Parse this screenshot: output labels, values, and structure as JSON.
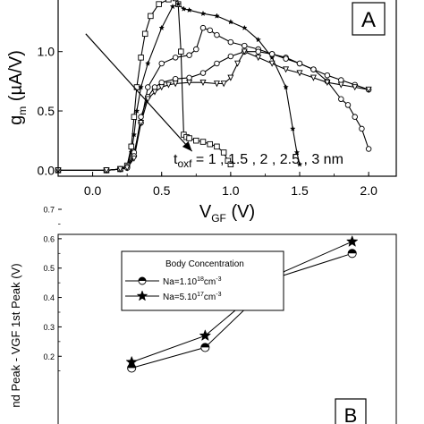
{
  "chart_data": [
    {
      "type": "line",
      "panel_label": "A",
      "xlabel": {
        "main": "V",
        "sub": "GF",
        "unit": " (V)"
      },
      "ylabel": {
        "main": "g",
        "sub": "m",
        "unit": " (µA/V)"
      },
      "xlim": [
        -0.25,
        2.2
      ],
      "ylim": [
        -0.05,
        1.45
      ],
      "xticks": [
        "0.0",
        "0.5",
        "1.0",
        "1.5",
        "2.0"
      ],
      "xtick_values": [
        0,
        0.5,
        1.0,
        1.5,
        2.0
      ],
      "yticks": [
        "0.0",
        "0.5",
        "1.0"
      ],
      "ytick_values": [
        0,
        0.5,
        1.0
      ],
      "annotation": {
        "main": "t",
        "sub": "oxf",
        "rest": " = 1 , 1.5 , 2 , 2.5 , 3 nm"
      },
      "arrow": {
        "from": [
          -0.05,
          1.15
        ],
        "to": [
          0.72,
          0.16
        ]
      },
      "series": [
        {
          "marker": "square",
          "x": [
            -0.25,
            0.1,
            0.2,
            0.25,
            0.28,
            0.3,
            0.32,
            0.35,
            0.38,
            0.42,
            0.48,
            0.55,
            0.6,
            0.62,
            0.64,
            0.66,
            0.68,
            0.7,
            0.75,
            0.8,
            0.85,
            0.9,
            0.95,
            0.98,
            1.0
          ],
          "y": [
            0,
            0,
            0.01,
            0.04,
            0.2,
            0.45,
            0.7,
            0.95,
            1.15,
            1.3,
            1.4,
            1.44,
            1.45,
            1.4,
            1.0,
            0.3,
            0.28,
            0.27,
            0.25,
            0.24,
            0.22,
            0.2,
            0.15,
            0.08,
            0.05
          ]
        },
        {
          "marker": "star",
          "x": [
            -0.25,
            0.1,
            0.2,
            0.25,
            0.28,
            0.3,
            0.32,
            0.35,
            0.4,
            0.5,
            0.58,
            0.62,
            0.66,
            0.7,
            0.8,
            0.9,
            1.0,
            1.1,
            1.2,
            1.3,
            1.4,
            1.45,
            1.48,
            1.5
          ],
          "y": [
            0,
            0,
            0.01,
            0.03,
            0.15,
            0.3,
            0.5,
            0.7,
            0.9,
            1.2,
            1.38,
            1.4,
            1.36,
            1.35,
            1.32,
            1.3,
            1.25,
            1.2,
            1.1,
            0.95,
            0.7,
            0.35,
            0.15,
            0.05
          ]
        },
        {
          "marker": "circle",
          "x": [
            -0.25,
            0.1,
            0.2,
            0.25,
            0.3,
            0.35,
            0.4,
            0.5,
            0.6,
            0.7,
            0.75,
            0.8,
            0.85,
            0.9,
            1.0,
            1.1,
            1.2,
            1.3,
            1.4,
            1.5,
            1.6,
            1.7,
            1.8,
            1.85,
            1.9,
            1.95,
            2.0
          ],
          "y": [
            0,
            0,
            0.01,
            0.03,
            0.15,
            0.4,
            0.7,
            0.9,
            0.95,
            0.97,
            1.02,
            1.2,
            1.18,
            1.14,
            1.08,
            1.05,
            1.02,
            0.98,
            0.95,
            0.9,
            0.85,
            0.75,
            0.6,
            0.55,
            0.45,
            0.35,
            0.18
          ]
        },
        {
          "marker": "circle",
          "x": [
            -0.25,
            0.1,
            0.2,
            0.25,
            0.3,
            0.35,
            0.4,
            0.45,
            0.5,
            0.6,
            0.7,
            0.8,
            0.9,
            1.0,
            1.1,
            1.2,
            1.3,
            1.4,
            1.5,
            1.6,
            1.7,
            1.8,
            1.9,
            2.0
          ],
          "y": [
            0,
            0,
            0.01,
            0.02,
            0.12,
            0.45,
            0.62,
            0.7,
            0.74,
            0.77,
            0.78,
            0.82,
            0.9,
            0.96,
            1.0,
            1.0,
            0.98,
            0.94,
            0.9,
            0.85,
            0.8,
            0.76,
            0.72,
            0.68
          ]
        },
        {
          "marker": "triangle",
          "x": [
            -0.25,
            0.1,
            0.2,
            0.25,
            0.3,
            0.35,
            0.4,
            0.45,
            0.5,
            0.55,
            0.6,
            0.7,
            0.8,
            0.9,
            0.95,
            1.0,
            1.05,
            1.1,
            1.2,
            1.3,
            1.4,
            1.5,
            1.6,
            1.7,
            1.8,
            1.9,
            2.0
          ],
          "y": [
            0,
            0,
            0.01,
            0.02,
            0.1,
            0.4,
            0.6,
            0.66,
            0.7,
            0.72,
            0.73,
            0.74,
            0.74,
            0.73,
            0.73,
            0.78,
            0.9,
            1.0,
            0.95,
            0.9,
            0.85,
            0.82,
            0.78,
            0.74,
            0.72,
            0.7,
            0.68
          ]
        }
      ]
    },
    {
      "type": "line",
      "panel_label": "B",
      "ylabel": {
        "main": "V",
        "sub": "GF",
        "rest": "nd Peak - V",
        "sub2": "GF",
        "rest2": " 1",
        "sup": "st",
        "rest3": " Peak (V)"
      },
      "ylabel_visible": "nd Peak - VGF 1st Peak (V)",
      "ylim": [
        0.0,
        0.7
      ],
      "yticks": [
        "0.7",
        "0.6",
        "0.5",
        "0.4",
        "0.3",
        "0.2"
      ],
      "ytick_values": [
        0.7,
        0.6,
        0.5,
        0.4,
        0.3,
        0.2
      ],
      "legend": {
        "title": "Body Concentration",
        "entries": [
          {
            "text": "Na=1.10",
            "sup": "18",
            "unit": "cm",
            "unit_sup": "-3",
            "marker": "half-circle"
          },
          {
            "text": "Na=5.10",
            "sup": "17",
            "unit": "cm",
            "unit_sup": "-3",
            "marker": "star"
          }
        ]
      },
      "series": [
        {
          "name": "Na=1.10^18cm^-3",
          "marker": "half-circle",
          "x": [
            1.5,
            2.0,
            2.5,
            3.0
          ],
          "y": [
            0.16,
            0.23,
            0.47,
            0.55
          ]
        },
        {
          "name": "Na=5.10^17cm^-3",
          "marker": "star",
          "x": [
            1.5,
            2.0,
            2.5,
            3.0
          ],
          "y": [
            0.18,
            0.27,
            0.48,
            0.59
          ]
        }
      ]
    }
  ]
}
